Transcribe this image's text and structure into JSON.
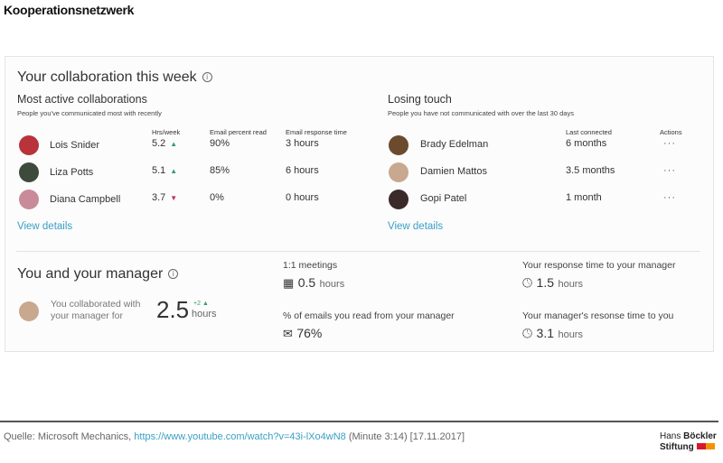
{
  "page_title": "Kooperationsnetzwerk",
  "panel": {
    "title": "Your collaboration this week",
    "most_active": {
      "title": "Most active collaborations",
      "subtitle": "People you've communicated most with recently",
      "headers": [
        "Hrs/week",
        "Email percent read",
        "Email response time"
      ],
      "rows": [
        {
          "name": "Lois Snider",
          "hrs": "5.2",
          "trend": "up",
          "read": "90%",
          "response": "3 hours",
          "avatar_color": "#b8343a"
        },
        {
          "name": "Liza Potts",
          "hrs": "5.1",
          "trend": "up",
          "read": "85%",
          "response": "6 hours",
          "avatar_color": "#3d4a3c"
        },
        {
          "name": "Diana Campbell",
          "hrs": "3.7",
          "trend": "down",
          "read": "0%",
          "response": "0 hours",
          "avatar_color": "#c98a9a"
        }
      ],
      "view_details": "View details"
    },
    "losing_touch": {
      "title": "Losing touch",
      "subtitle": "People you have not communicated with over the last 30 days",
      "headers": [
        "Last connected",
        "Actions"
      ],
      "rows": [
        {
          "name": "Brady Edelman",
          "last": "6 months",
          "avatar_color": "#6b4a2e"
        },
        {
          "name": "Damien Mattos",
          "last": "3.5 months",
          "avatar_color": "#c9a890"
        },
        {
          "name": "Gopi Patel",
          "last": "1 month",
          "avatar_color": "#3a2a2a"
        }
      ],
      "actions_label": "···",
      "view_details": "View details"
    },
    "manager": {
      "title": "You and your manager",
      "collab_text_1": "You collaborated with",
      "collab_text_2": "your manager for",
      "collab_value": "2.5",
      "collab_delta": "+2",
      "collab_unit": "hours",
      "meetings_label": "1:1 meetings",
      "meetings_value": "0.5",
      "meetings_unit": "hours",
      "emails_label": "% of emails you read from your manager",
      "emails_value": "76%",
      "your_response_label": "Your response time to your manager",
      "your_response_value": "1.5",
      "your_response_unit": "hours",
      "mgr_response_label": "Your manager's resonse time to you",
      "mgr_response_value": "3.1",
      "mgr_response_unit": "hours"
    }
  },
  "footer": {
    "source_prefix": "Quelle: Microsoft Mechanics, ",
    "link": "https://www.youtube.com/watch?v=43i-lXo4wN8",
    "source_suffix": " (Minute 3:14) [17.11.2017]",
    "logo_line1_a": "Hans ",
    "logo_line1_b": "Böckler",
    "logo_line2": "Stiftung"
  }
}
